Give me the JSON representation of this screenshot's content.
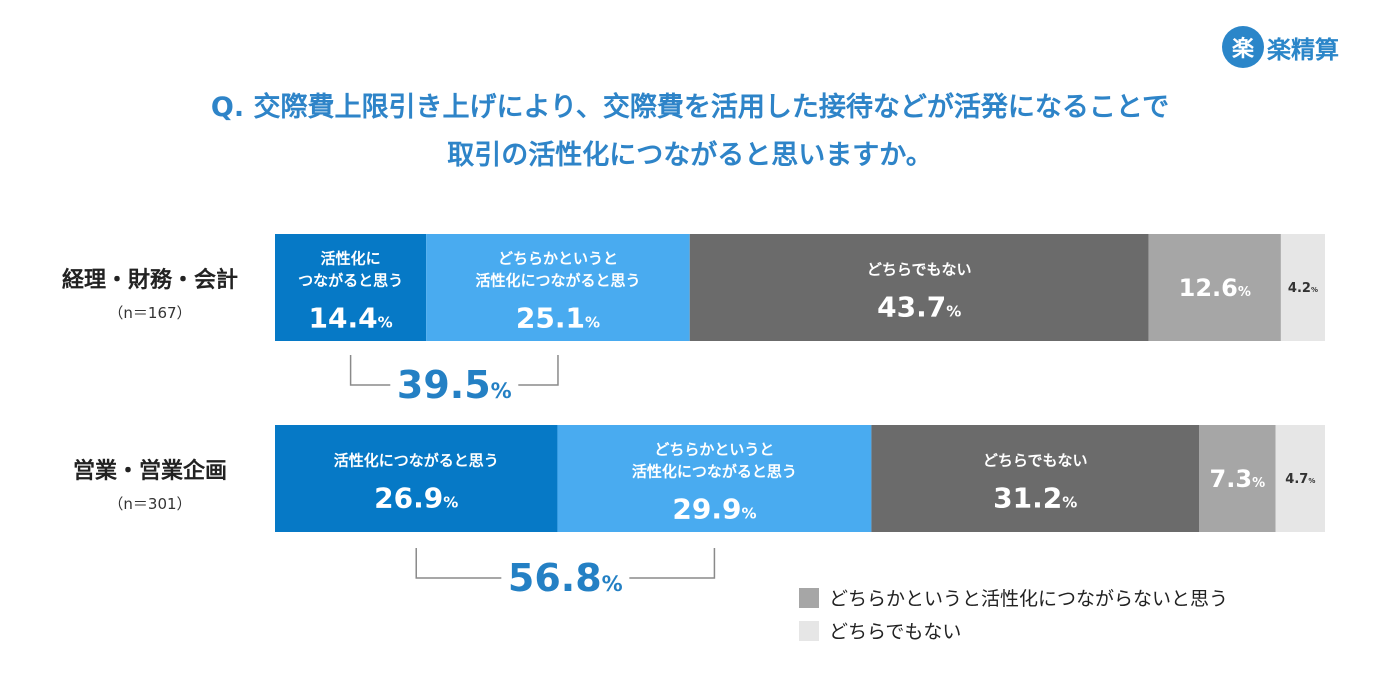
{
  "logo": {
    "mark": "楽",
    "text": "楽精算"
  },
  "title_lines": [
    "Q. 交際費上限引き上げにより、交際費を活用した接待などが活発になることで",
    "取引の活性化につながると思いますか。"
  ],
  "colors": {
    "series": [
      "#0679c6",
      "#49abf0",
      "#6b6b6b",
      "#a6a6a6",
      "#e6e6e6"
    ],
    "summary": "#2480c4",
    "bracket": "#8a8a8a",
    "label": "#222222"
  },
  "chart_data": {
    "type": "stacked-bar-horizontal",
    "unit": "%",
    "series": [
      {
        "name": "活性化につながると思う"
      },
      {
        "name": "どちらかというと活性化につながると思う"
      },
      {
        "name": "どちらでもない"
      },
      {
        "name": "どちらかというと活性化につながらないと思う"
      },
      {
        "name": "どちらでもない"
      }
    ],
    "categories": [
      {
        "label": "経理・財務・会計",
        "sample": "（n＝167）",
        "values": [
          14.4,
          25.1,
          43.7,
          12.6,
          4.2
        ],
        "value_texts": [
          "14.4",
          "25.1",
          "43.7",
          "12.6",
          "4.2"
        ],
        "segment_labels": [
          [
            "活性化に",
            "つながると思う"
          ],
          [
            "どちらかというと",
            "活性化につながると思う"
          ],
          [
            "どちらでもない"
          ],
          [],
          []
        ],
        "summary": {
          "value": 39.5,
          "text": "39.5"
        }
      },
      {
        "label": "営業・営業企画",
        "sample": "（n＝301）",
        "values": [
          26.9,
          29.9,
          31.2,
          7.3,
          4.7
        ],
        "value_texts": [
          "26.9",
          "29.9",
          "31.2",
          "7.3",
          "4.7"
        ],
        "segment_labels": [
          [
            "活性化につながると思う"
          ],
          [
            "どちらかというと",
            "活性化につながると思う"
          ],
          [
            "どちらでもない"
          ],
          [],
          []
        ],
        "summary": {
          "value": 56.8,
          "text": "56.8"
        }
      }
    ],
    "legend": [
      {
        "label": "どちらかというと活性化につながらないと思う",
        "series_index": 3
      },
      {
        "label": "どちらでもない",
        "series_index": 4
      }
    ],
    "legend_position": "bottom-right",
    "grid": false
  }
}
